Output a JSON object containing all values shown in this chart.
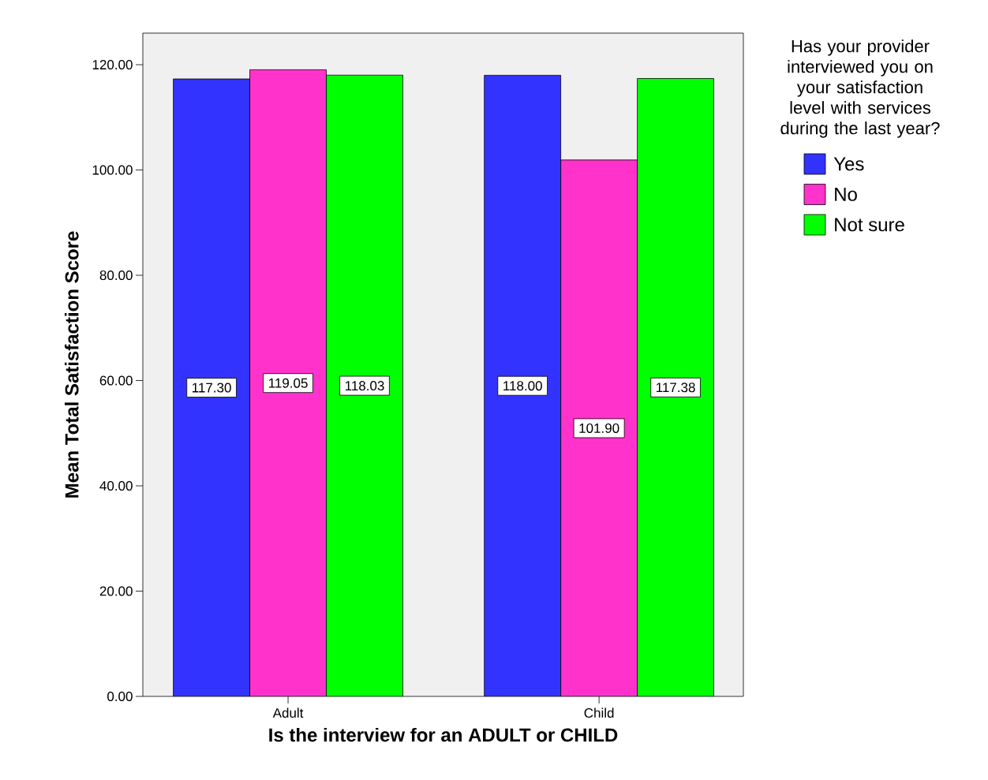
{
  "chart_data": {
    "type": "bar",
    "xlabel": "Is the interview for an ADULT or CHILD",
    "ylabel": "Mean Total Satisfaction Score",
    "legend_title": "Has your provider interviewed you on your satisfaction level with services during the last year?",
    "categories": [
      "Adult",
      "Child"
    ],
    "series": [
      {
        "name": "Yes",
        "color": "#3333ff",
        "values": [
          117.3,
          118.0
        ],
        "value_labels": [
          "117.30",
          "118.00"
        ]
      },
      {
        "name": "No",
        "color": "#ff33cc",
        "values": [
          119.05,
          101.9
        ],
        "value_labels": [
          "119.05",
          "101.90"
        ]
      },
      {
        "name": "Not sure",
        "color": "#00ff00",
        "values": [
          118.03,
          117.38
        ],
        "value_labels": [
          "118.03",
          "117.38"
        ]
      }
    ],
    "ylim": [
      0,
      126
    ],
    "yticks": [
      {
        "value": 0,
        "label": "0.00"
      },
      {
        "value": 20,
        "label": "20.00"
      },
      {
        "value": 40,
        "label": "40.00"
      },
      {
        "value": 60,
        "label": "60.00"
      },
      {
        "value": 80,
        "label": "80.00"
      },
      {
        "value": 100,
        "label": "100.00"
      },
      {
        "value": 120,
        "label": "120.00"
      }
    ],
    "grid": false,
    "legend": "top right"
  }
}
